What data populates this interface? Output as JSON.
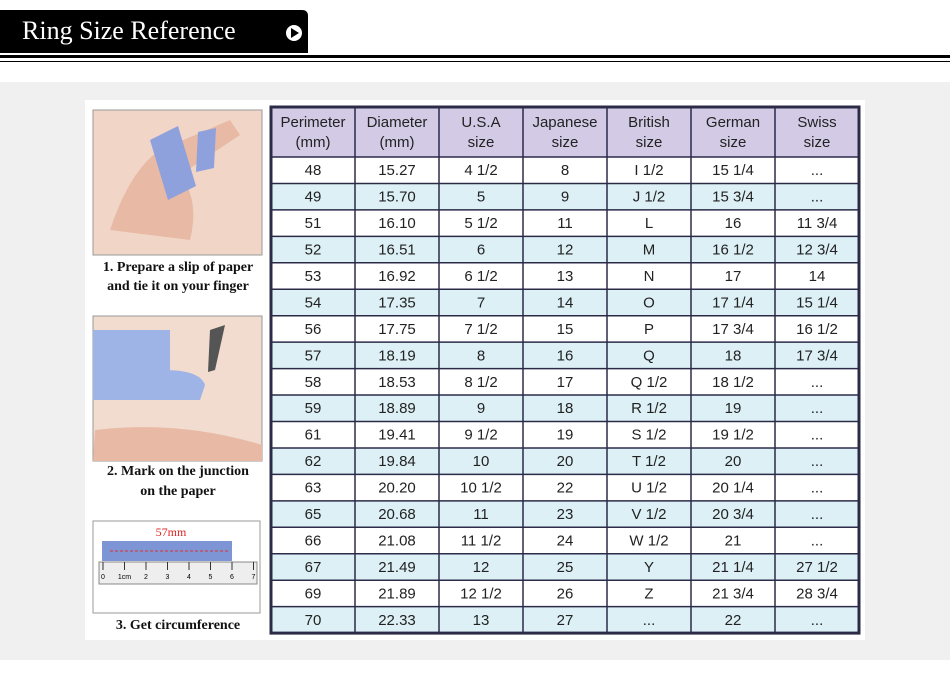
{
  "header": {
    "title": "Ring Size Reference"
  },
  "steps": [
    {
      "lines": [
        "1. Prepare a slip of paper",
        "and tie it on your finger"
      ]
    },
    {
      "lines": [
        "2. Mark on the junction",
        "on the paper"
      ]
    },
    {
      "lines": [
        "3. Get circumference"
      ]
    }
  ],
  "ruler": {
    "measure": "57mm",
    "labels": [
      "0",
      "1cm",
      "2",
      "3",
      "4",
      "5",
      "6",
      "7"
    ]
  },
  "table": {
    "columns": [
      [
        "Perimeter",
        "(mm)"
      ],
      [
        "Diameter",
        "(mm)"
      ],
      [
        "U.S.A",
        "size"
      ],
      [
        "Japanese",
        "size"
      ],
      [
        "British",
        "size"
      ],
      [
        "German",
        "size"
      ],
      [
        "Swiss",
        "size"
      ]
    ],
    "rows": [
      [
        "48",
        "15.27",
        "4 1/2",
        "8",
        "I 1/2",
        "15 1/4",
        "..."
      ],
      [
        "49",
        "15.70",
        "5",
        "9",
        "J 1/2",
        "15 3/4",
        "..."
      ],
      [
        "51",
        "16.10",
        "5 1/2",
        "11",
        "L",
        "16",
        "11 3/4"
      ],
      [
        "52",
        "16.51",
        "6",
        "12",
        "M",
        "16 1/2",
        "12 3/4"
      ],
      [
        "53",
        "16.92",
        "6 1/2",
        "13",
        "N",
        "17",
        "14"
      ],
      [
        "54",
        "17.35",
        "7",
        "14",
        "O",
        "17 1/4",
        "15 1/4"
      ],
      [
        "56",
        "17.75",
        "7 1/2",
        "15",
        "P",
        "17 3/4",
        "16 1/2"
      ],
      [
        "57",
        "18.19",
        "8",
        "16",
        "Q",
        "18",
        "17 3/4"
      ],
      [
        "58",
        "18.53",
        "8 1/2",
        "17",
        "Q 1/2",
        "18 1/2",
        "..."
      ],
      [
        "59",
        "18.89",
        "9",
        "18",
        "R 1/2",
        "19",
        "..."
      ],
      [
        "61",
        "19.41",
        "9 1/2",
        "19",
        "S 1/2",
        "19 1/2",
        "..."
      ],
      [
        "62",
        "19.84",
        "10",
        "20",
        "T 1/2",
        "20",
        "..."
      ],
      [
        "63",
        "20.20",
        "10 1/2",
        "22",
        "U 1/2",
        "20 1/4",
        "..."
      ],
      [
        "65",
        "20.68",
        "11",
        "23",
        "V 1/2",
        "20 3/4",
        "..."
      ],
      [
        "66",
        "21.08",
        "11 1/2",
        "24",
        "W 1/2",
        "21",
        "..."
      ],
      [
        "67",
        "21.49",
        "12",
        "25",
        "Y",
        "21 1/4",
        "27 1/2"
      ],
      [
        "69",
        "21.89",
        "12 1/2",
        "26",
        "Z",
        "21 3/4",
        "28 3/4"
      ],
      [
        "70",
        "22.33",
        "13",
        "27",
        "...",
        "22",
        "..."
      ]
    ]
  }
}
